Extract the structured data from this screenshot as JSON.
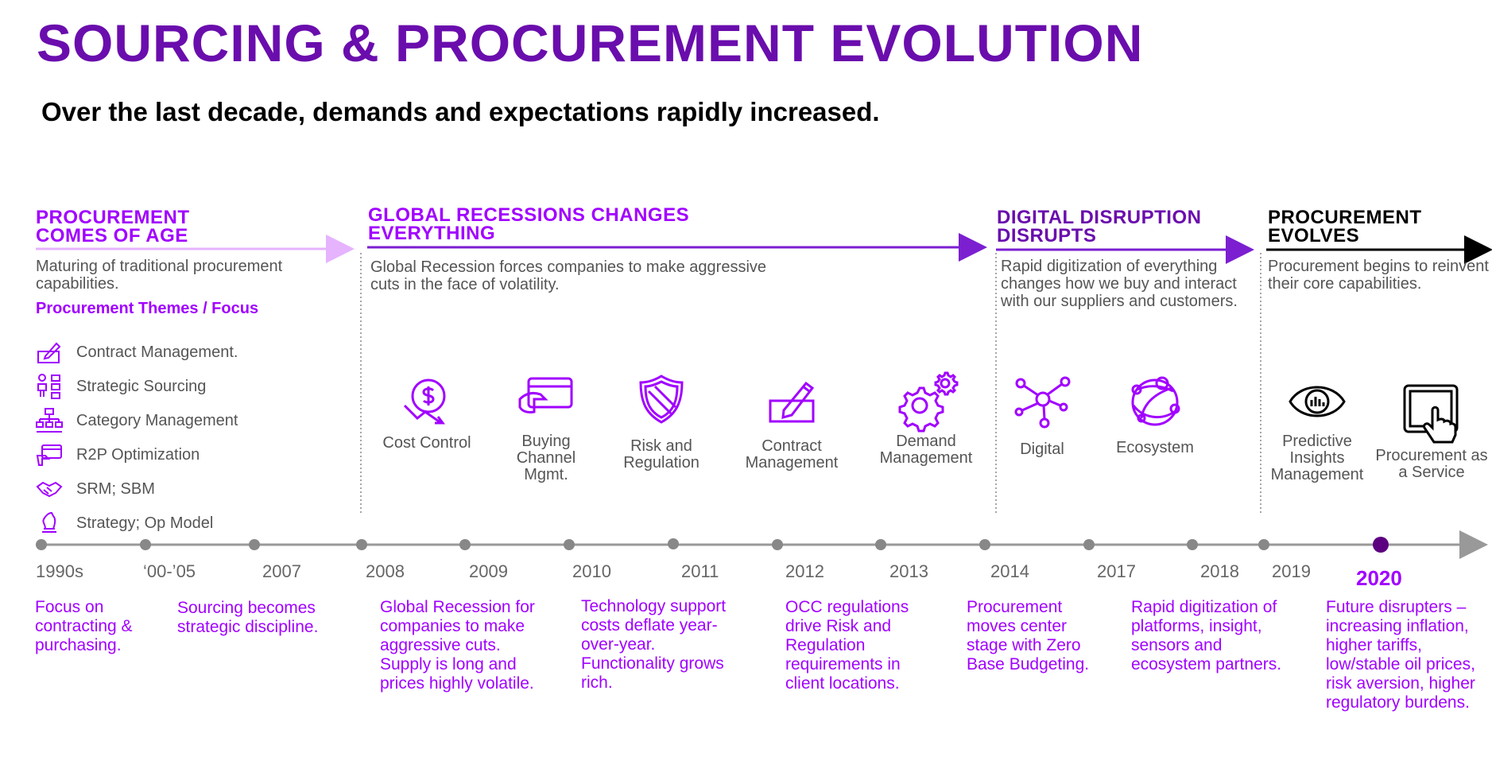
{
  "title": "SOURCING & PROCUREMENT EVOLUTION",
  "subtitle": "Over the last decade, demands and expectations rapidly increased.",
  "phases": [
    {
      "title": "PROCUREMENT COMES OF AGE",
      "desc": "Maturing of traditional procurement capabilities."
    },
    {
      "title": "GLOBAL RECESSIONS CHANGES EVERYTHING",
      "desc": "Global Recession forces companies to make aggressive cuts in the face of volatility."
    },
    {
      "title": "DIGITAL DISRUPTION DISRUPTS",
      "desc": "Rapid digitization of everything changes how we buy and interact with our suppliers and customers."
    },
    {
      "title": "PROCUREMENT EVOLVES",
      "desc": "Procurement begins to reinvent their core capabilities."
    }
  ],
  "themes_heading": "Procurement Themes / Focus",
  "themes": [
    {
      "label": "Contract Management.",
      "icon": "contract-sign-icon"
    },
    {
      "label": "Strategic Sourcing",
      "icon": "sourcing-icon"
    },
    {
      "label": "Category Management",
      "icon": "hierarchy-icon"
    },
    {
      "label": "R2P Optimization",
      "icon": "card-transfer-icon"
    },
    {
      "label": "SRM; SBM",
      "icon": "handshake-icon"
    },
    {
      "label": "Strategy; Op Model",
      "icon": "chess-knight-icon"
    }
  ],
  "focus_items": [
    {
      "label": "Cost Control",
      "icon": "dollar-down-icon"
    },
    {
      "label": "Buying Channel Mgmt.",
      "icon": "payment-card-icon"
    },
    {
      "label": "Risk and Regulation",
      "icon": "shield-icon"
    },
    {
      "label": "Contract Management",
      "icon": "signature-icon"
    },
    {
      "label": "Demand Management",
      "icon": "gears-icon"
    },
    {
      "label": "Digital",
      "icon": "network-icon"
    },
    {
      "label": "Ecosystem",
      "icon": "globe-nodes-icon"
    },
    {
      "label": "Predictive Insights Management",
      "icon": "eye-chart-icon"
    },
    {
      "label": "Procurement as a Service",
      "icon": "tablet-touch-icon"
    }
  ],
  "years": [
    "1990s",
    "‘00-’05",
    "2007",
    "2008",
    "2009",
    "2010",
    "2011",
    "2012",
    "2013",
    "2014",
    "2017",
    "2018",
    "2019",
    "2020"
  ],
  "events": [
    "Focus on contracting & purchasing.",
    "Sourcing becomes strategic discipline.",
    "Global Recession for companies to make aggressive cuts. Supply is long and prices highly volatile.",
    "Technology support costs deflate year-over-year. Functionality grows rich.",
    "OCC regulations drive Risk and Regulation requirements in client locations.",
    "Procurement moves center stage with Zero Base Budgeting.",
    "Rapid digitization of platforms, insight, sensors and ecosystem partners.",
    "Future disrupters – increasing inflation, higher tariffs, low/stable oil prices, risk aversion, higher regulatory burdens."
  ],
  "colors": {
    "purple": "#a100ff",
    "dark_purple": "#6a0dad",
    "light_purple": "#e6b3ff",
    "gray": "#888888"
  }
}
